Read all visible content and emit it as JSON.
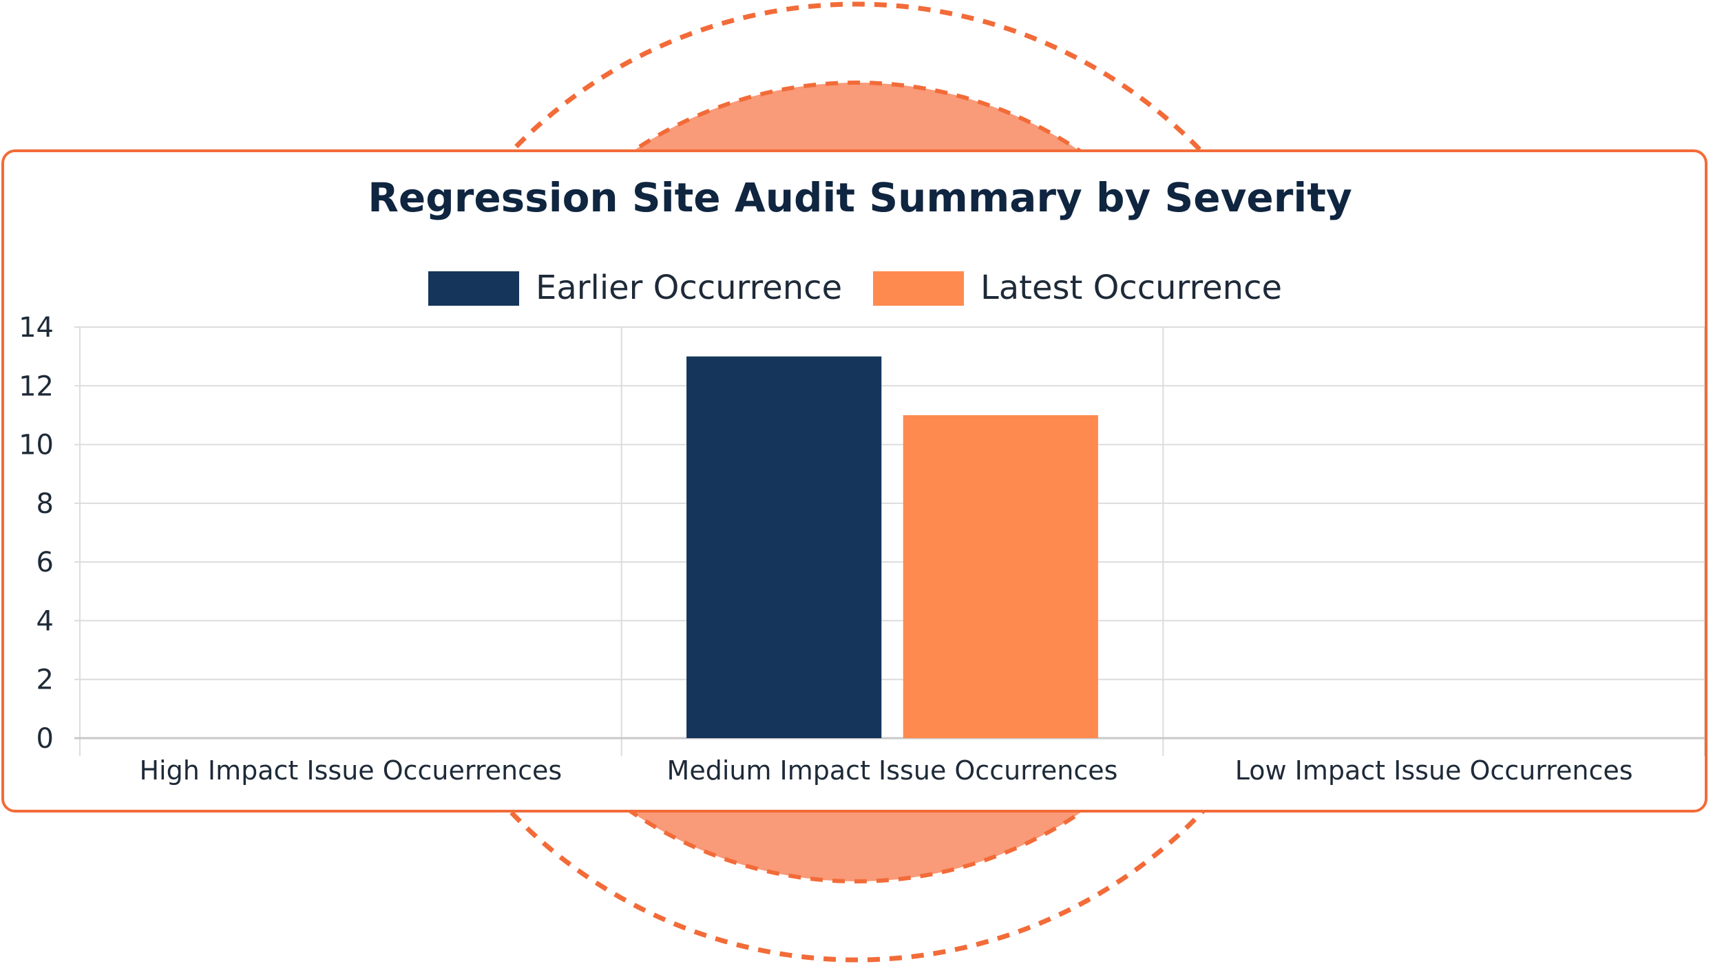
{
  "colors": {
    "accent": "#f26b38",
    "circle_fill": "#f99a78",
    "earlier": "#15355a",
    "latest": "#ff8a50",
    "grid": "#dcdcdc",
    "text": "#1e2a38"
  },
  "chart_data": {
    "type": "bar",
    "title": "Regression Site Audit Summary by Severity",
    "categories": [
      "High Impact Issue Occuerrences",
      "Medium Impact Issue Occurrences",
      "Low Impact Issue Occurrences"
    ],
    "series": [
      {
        "name": "Earlier Occurrence",
        "values": [
          0,
          13,
          0
        ]
      },
      {
        "name": "Latest Occurrence",
        "values": [
          0,
          11,
          0
        ]
      }
    ],
    "yticks": [
      "0",
      "2",
      "4",
      "6",
      "8",
      "10",
      "12",
      "14"
    ],
    "ylim": [
      0,
      14
    ],
    "ystep": 2,
    "xlabel": "",
    "ylabel": "",
    "legend_position": "top-center",
    "grid": true
  }
}
